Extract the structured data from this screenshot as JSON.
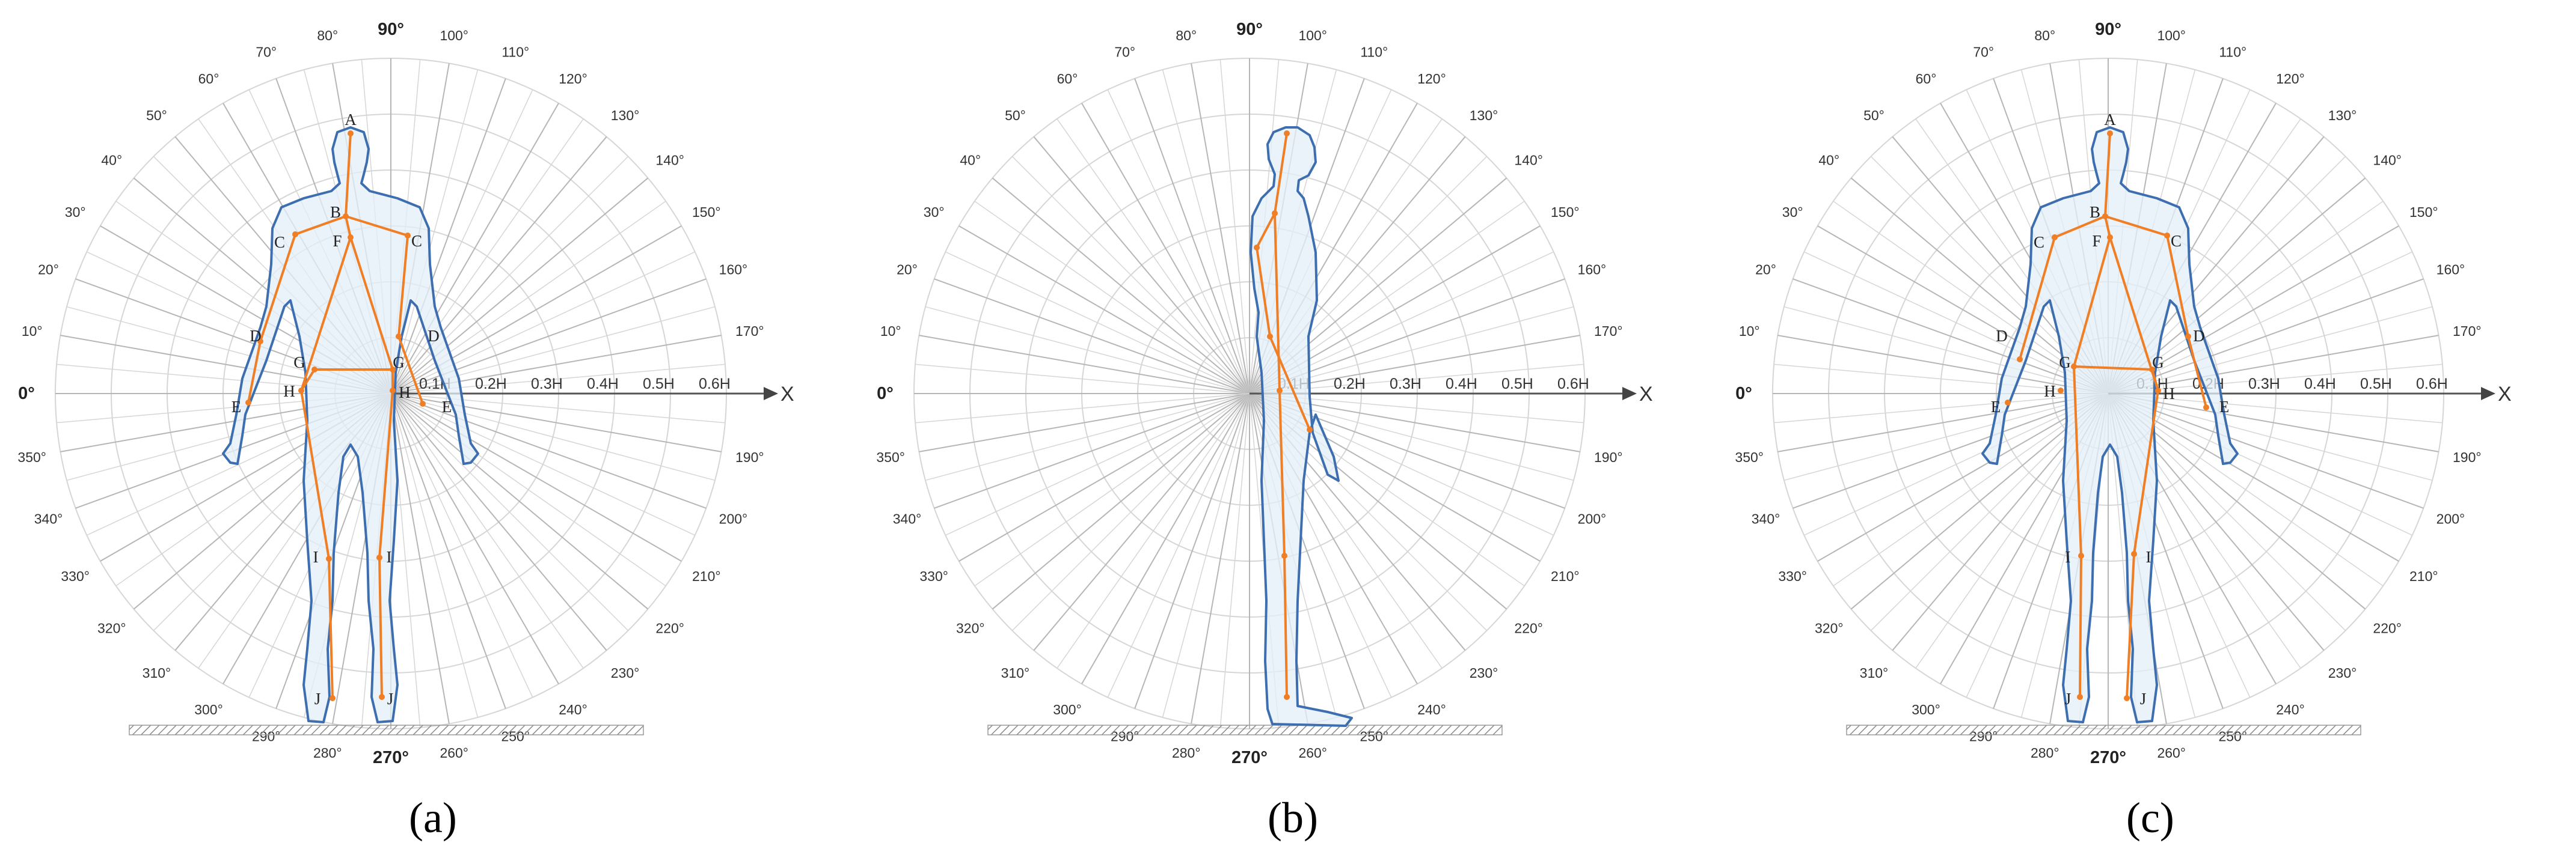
{
  "figure": {
    "radial_ticks": [
      "0.1H",
      "0.2H",
      "0.3H",
      "0.4H",
      "0.5H",
      "0.6H"
    ],
    "axis_label": "X",
    "angles": [
      "0°",
      "10°",
      "20°",
      "30°",
      "40°",
      "50°",
      "60°",
      "70°",
      "80°",
      "90°",
      "100°",
      "110°",
      "120°",
      "130°",
      "140°",
      "150°",
      "160°",
      "170°",
      "190°",
      "200°",
      "210°",
      "220°",
      "230°",
      "240°",
      "250°",
      "260°",
      "270°",
      "280°",
      "290°",
      "300°",
      "310°",
      "320°",
      "330°",
      "340°",
      "350°"
    ],
    "major_angles": [
      "0°",
      "90°",
      "270°"
    ],
    "colors": {
      "skeleton": "#ef7e24",
      "body_outline": "#3d6eaf",
      "body_fill": "#e3eef8",
      "grid": "#d6d6d6",
      "axis": "#555555"
    },
    "panels": [
      {
        "caption": "(a)",
        "view": "front",
        "joint_labels": [
          "A",
          "B",
          "C",
          "C",
          "F",
          "D",
          "D",
          "G",
          "G",
          "H",
          "H",
          "E",
          "E",
          "I",
          "I",
          "J",
          "J"
        ]
      },
      {
        "caption": "(b)",
        "view": "side",
        "joint_labels": []
      },
      {
        "caption": "(c)",
        "view": "front-alt",
        "joint_labels": [
          "A",
          "B",
          "C",
          "C",
          "F",
          "D",
          "D",
          "G",
          "G",
          "H",
          "H",
          "E",
          "E",
          "I",
          "I",
          "J",
          "J"
        ]
      }
    ]
  }
}
